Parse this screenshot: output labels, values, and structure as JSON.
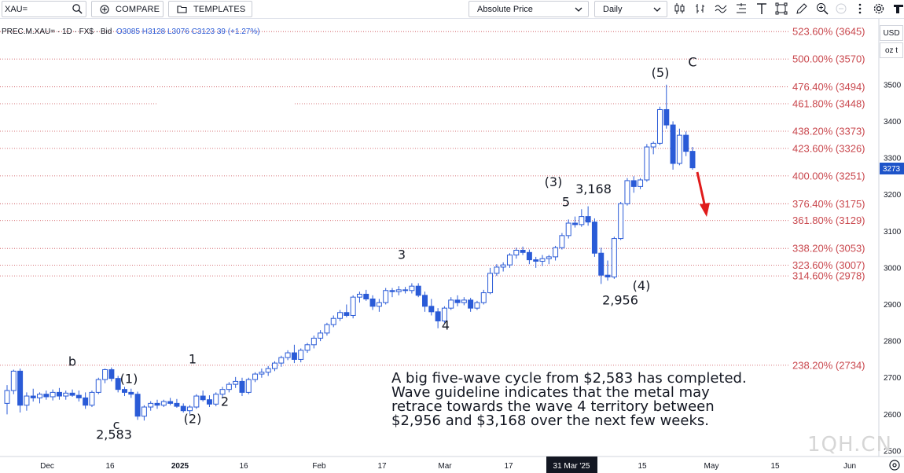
{
  "toolbar": {
    "symbol": "XAU=",
    "compare_label": "COMPARE",
    "templates_label": "TEMPLATES",
    "price_mode": "Absolute Price",
    "interval": "Daily",
    "icons": [
      "candlestick-icon",
      "bars-icon",
      "indicators-icon",
      "drawing-tools-icon",
      "text-tool-icon",
      "shapes-icon",
      "pencil-icon",
      "zoom-in-icon",
      "zoom-out-icon",
      "more-icon",
      "settings-icon",
      "logo-icon"
    ]
  },
  "legend": {
    "instrument": "PREC.M.XAU=",
    "interval": "1D",
    "currency": "FX$",
    "side": "Bid",
    "open": "O3085",
    "high": "H3128",
    "low": "L3076",
    "close": "C3123",
    "change": "39 (+1.27%)"
  },
  "axis": {
    "currency_button": "USD",
    "unit_button": "oz t",
    "last_price": "3273",
    "active_date": "31 Mar '25"
  },
  "annotation_note": [
    "A big five-wave cycle from $2,583 has completed.",
    "Wave guideline indicates that the metal may",
    "retrace towards the wave 4 territory between",
    "$2,956 and $3,168 over the next few weeks."
  ],
  "watermark": "1QH.CN",
  "colors": {
    "candle_blue": "#2a5bd7",
    "fib_line": "#c9474d",
    "arrow": "#e01b1b",
    "price_badge": "#1e54c9",
    "date_badge": "#131722"
  },
  "chart_data": {
    "type": "candlestick",
    "instrument": "XAU=",
    "y_axis": {
      "ticks": [
        2500,
        2600,
        2700,
        2800,
        2900,
        3000,
        3100,
        3200,
        3300,
        3400,
        3500
      ],
      "range": [
        2480,
        3690
      ]
    },
    "x_axis": {
      "ticks": [
        "Dec",
        "16",
        "2025",
        "16",
        "Feb",
        "17",
        "Mar",
        "17",
        "31 Mar '25",
        "15",
        "May",
        "15",
        "Jun"
      ]
    },
    "fib_levels": [
      {
        "label": "238.20% (2734)",
        "value": 2734
      },
      {
        "label": "314.60% (2978)",
        "value": 2978
      },
      {
        "label": "323.60% (3007)",
        "value": 3007
      },
      {
        "label": "338.20% (3053)",
        "value": 3053
      },
      {
        "label": "361.80% (3129)",
        "value": 3129
      },
      {
        "label": "376.40% (3175)",
        "value": 3175
      },
      {
        "label": "400.00% (3251)",
        "value": 3251
      },
      {
        "label": "423.60% (3326)",
        "value": 3326
      },
      {
        "label": "438.20% (3373)",
        "value": 3373
      },
      {
        "label": "461.80% (3448)",
        "value": 3448
      },
      {
        "label": "476.40% (3494)",
        "value": 3494
      },
      {
        "label": "500.00% (3570)",
        "value": 3570
      },
      {
        "label": "523.60% (3645)",
        "value": 3645
      }
    ],
    "wave_labels": [
      {
        "text": "b",
        "price": 2746
      },
      {
        "text": "c",
        "price": 2573
      },
      {
        "text": "2,583",
        "price": 2546
      },
      {
        "text": "(1)",
        "price": 2698
      },
      {
        "text": "(2)",
        "price": 2589
      },
      {
        "text": "1",
        "price": 2752
      },
      {
        "text": "2",
        "price": 2636
      },
      {
        "text": "3",
        "price": 3037
      },
      {
        "text": "4",
        "price": 2844
      },
      {
        "text": "5",
        "price": 3181
      },
      {
        "text": "3,168",
        "price": 3216
      },
      {
        "text": "(3)",
        "price": 3236
      },
      {
        "text": "(4)",
        "price": 2953
      },
      {
        "text": "2,956",
        "price": 2913
      },
      {
        "text": "(5)",
        "price": 3534
      },
      {
        "text": "C",
        "price": 3563
      }
    ],
    "candles": [
      {
        "o": 2630,
        "h": 2680,
        "l": 2600,
        "c": 2665
      },
      {
        "o": 2665,
        "h": 2722,
        "l": 2655,
        "c": 2718
      },
      {
        "o": 2718,
        "h": 2725,
        "l": 2605,
        "c": 2625
      },
      {
        "o": 2625,
        "h": 2660,
        "l": 2610,
        "c": 2650
      },
      {
        "o": 2650,
        "h": 2670,
        "l": 2635,
        "c": 2645
      },
      {
        "o": 2645,
        "h": 2660,
        "l": 2630,
        "c": 2655
      },
      {
        "o": 2655,
        "h": 2665,
        "l": 2640,
        "c": 2648
      },
      {
        "o": 2648,
        "h": 2668,
        "l": 2638,
        "c": 2660
      },
      {
        "o": 2660,
        "h": 2672,
        "l": 2640,
        "c": 2650
      },
      {
        "o": 2650,
        "h": 2665,
        "l": 2640,
        "c": 2658
      },
      {
        "o": 2658,
        "h": 2668,
        "l": 2648,
        "c": 2652
      },
      {
        "o": 2652,
        "h": 2665,
        "l": 2635,
        "c": 2645
      },
      {
        "o": 2645,
        "h": 2660,
        "l": 2615,
        "c": 2625
      },
      {
        "o": 2625,
        "h": 2665,
        "l": 2620,
        "c": 2660
      },
      {
        "o": 2660,
        "h": 2700,
        "l": 2655,
        "c": 2695
      },
      {
        "o": 2695,
        "h": 2725,
        "l": 2685,
        "c": 2722
      },
      {
        "o": 2722,
        "h": 2728,
        "l": 2690,
        "c": 2698
      },
      {
        "o": 2698,
        "h": 2705,
        "l": 2660,
        "c": 2668
      },
      {
        "o": 2668,
        "h": 2675,
        "l": 2650,
        "c": 2660
      },
      {
        "o": 2660,
        "h": 2670,
        "l": 2645,
        "c": 2655
      },
      {
        "o": 2655,
        "h": 2662,
        "l": 2585,
        "c": 2595
      },
      {
        "o": 2595,
        "h": 2625,
        "l": 2583,
        "c": 2620
      },
      {
        "o": 2620,
        "h": 2636,
        "l": 2610,
        "c": 2630
      },
      {
        "o": 2630,
        "h": 2640,
        "l": 2615,
        "c": 2625
      },
      {
        "o": 2625,
        "h": 2640,
        "l": 2620,
        "c": 2635
      },
      {
        "o": 2635,
        "h": 2645,
        "l": 2625,
        "c": 2630
      },
      {
        "o": 2630,
        "h": 2642,
        "l": 2618,
        "c": 2622
      },
      {
        "o": 2622,
        "h": 2630,
        "l": 2605,
        "c": 2610
      },
      {
        "o": 2610,
        "h": 2625,
        "l": 2600,
        "c": 2620
      },
      {
        "o": 2620,
        "h": 2655,
        "l": 2615,
        "c": 2650
      },
      {
        "o": 2650,
        "h": 2665,
        "l": 2635,
        "c": 2640
      },
      {
        "o": 2640,
        "h": 2652,
        "l": 2620,
        "c": 2628
      },
      {
        "o": 2628,
        "h": 2660,
        "l": 2622,
        "c": 2655
      },
      {
        "o": 2655,
        "h": 2675,
        "l": 2645,
        "c": 2668
      },
      {
        "o": 2668,
        "h": 2688,
        "l": 2660,
        "c": 2682
      },
      {
        "o": 2682,
        "h": 2702,
        "l": 2672,
        "c": 2690
      },
      {
        "o": 2690,
        "h": 2700,
        "l": 2650,
        "c": 2660
      },
      {
        "o": 2660,
        "h": 2700,
        "l": 2655,
        "c": 2695
      },
      {
        "o": 2695,
        "h": 2715,
        "l": 2688,
        "c": 2710
      },
      {
        "o": 2710,
        "h": 2725,
        "l": 2700,
        "c": 2715
      },
      {
        "o": 2715,
        "h": 2732,
        "l": 2705,
        "c": 2725
      },
      {
        "o": 2725,
        "h": 2745,
        "l": 2718,
        "c": 2740
      },
      {
        "o": 2740,
        "h": 2760,
        "l": 2730,
        "c": 2755
      },
      {
        "o": 2755,
        "h": 2775,
        "l": 2748,
        "c": 2768
      },
      {
        "o": 2768,
        "h": 2790,
        "l": 2740,
        "c": 2750
      },
      {
        "o": 2750,
        "h": 2780,
        "l": 2742,
        "c": 2775
      },
      {
        "o": 2775,
        "h": 2795,
        "l": 2768,
        "c": 2790
      },
      {
        "o": 2790,
        "h": 2815,
        "l": 2780,
        "c": 2808
      },
      {
        "o": 2808,
        "h": 2830,
        "l": 2800,
        "c": 2822
      },
      {
        "o": 2822,
        "h": 2850,
        "l": 2815,
        "c": 2845
      },
      {
        "o": 2845,
        "h": 2870,
        "l": 2838,
        "c": 2862
      },
      {
        "o": 2862,
        "h": 2885,
        "l": 2855,
        "c": 2878
      },
      {
        "o": 2878,
        "h": 2900,
        "l": 2865,
        "c": 2870
      },
      {
        "o": 2870,
        "h": 2925,
        "l": 2862,
        "c": 2920
      },
      {
        "o": 2920,
        "h": 2935,
        "l": 2905,
        "c": 2928
      },
      {
        "o": 2928,
        "h": 2940,
        "l": 2910,
        "c": 2915
      },
      {
        "o": 2915,
        "h": 2925,
        "l": 2885,
        "c": 2895
      },
      {
        "o": 2895,
        "h": 2915,
        "l": 2880,
        "c": 2905
      },
      {
        "o": 2905,
        "h": 2945,
        "l": 2900,
        "c": 2938
      },
      {
        "o": 2938,
        "h": 2945,
        "l": 2920,
        "c": 2935
      },
      {
        "o": 2935,
        "h": 2950,
        "l": 2925,
        "c": 2940
      },
      {
        "o": 2940,
        "h": 2948,
        "l": 2930,
        "c": 2938
      },
      {
        "o": 2938,
        "h": 2958,
        "l": 2930,
        "c": 2950
      },
      {
        "o": 2950,
        "h": 2958,
        "l": 2920,
        "c": 2925
      },
      {
        "o": 2925,
        "h": 2935,
        "l": 2880,
        "c": 2895
      },
      {
        "o": 2895,
        "h": 2915,
        "l": 2870,
        "c": 2880
      },
      {
        "o": 2880,
        "h": 2890,
        "l": 2835,
        "c": 2855
      },
      {
        "o": 2855,
        "h": 2895,
        "l": 2850,
        "c": 2890
      },
      {
        "o": 2890,
        "h": 2920,
        "l": 2885,
        "c": 2912
      },
      {
        "o": 2912,
        "h": 2925,
        "l": 2895,
        "c": 2905
      },
      {
        "o": 2905,
        "h": 2920,
        "l": 2898,
        "c": 2912
      },
      {
        "o": 2912,
        "h": 2918,
        "l": 2880,
        "c": 2890
      },
      {
        "o": 2890,
        "h": 2910,
        "l": 2885,
        "c": 2905
      },
      {
        "o": 2905,
        "h": 2940,
        "l": 2900,
        "c": 2932
      },
      {
        "o": 2932,
        "h": 3000,
        "l": 2928,
        "c": 2985
      },
      {
        "o": 2985,
        "h": 3010,
        "l": 2978,
        "c": 3002
      },
      {
        "o": 3002,
        "h": 3015,
        "l": 2990,
        "c": 3008
      },
      {
        "o": 3008,
        "h": 3040,
        "l": 3000,
        "c": 3035
      },
      {
        "o": 3035,
        "h": 3055,
        "l": 3025,
        "c": 3048
      },
      {
        "o": 3048,
        "h": 3058,
        "l": 3035,
        "c": 3042
      },
      {
        "o": 3042,
        "h": 3050,
        "l": 3010,
        "c": 3022
      },
      {
        "o": 3022,
        "h": 3030,
        "l": 3000,
        "c": 3018
      },
      {
        "o": 3018,
        "h": 3035,
        "l": 3005,
        "c": 3025
      },
      {
        "o": 3025,
        "h": 3035,
        "l": 3010,
        "c": 3030
      },
      {
        "o": 3030,
        "h": 3060,
        "l": 3020,
        "c": 3055
      },
      {
        "o": 3055,
        "h": 3095,
        "l": 3050,
        "c": 3088
      },
      {
        "o": 3088,
        "h": 3132,
        "l": 3080,
        "c": 3122
      },
      {
        "o": 3122,
        "h": 3140,
        "l": 3110,
        "c": 3118
      },
      {
        "o": 3118,
        "h": 3160,
        "l": 3112,
        "c": 3140
      },
      {
        "o": 3140,
        "h": 3168,
        "l": 3115,
        "c": 3125
      },
      {
        "o": 3125,
        "h": 3135,
        "l": 3030,
        "c": 3040
      },
      {
        "o": 3040,
        "h": 3055,
        "l": 2956,
        "c": 2980
      },
      {
        "o": 2980,
        "h": 3020,
        "l": 2965,
        "c": 2975
      },
      {
        "o": 2975,
        "h": 3085,
        "l": 2970,
        "c": 3080
      },
      {
        "o": 3080,
        "h": 3180,
        "l": 3076,
        "c": 3175
      },
      {
        "o": 3175,
        "h": 3245,
        "l": 3170,
        "c": 3238
      },
      {
        "o": 3238,
        "h": 3250,
        "l": 3205,
        "c": 3222
      },
      {
        "o": 3222,
        "h": 3245,
        "l": 3215,
        "c": 3240
      },
      {
        "o": 3240,
        "h": 3338,
        "l": 3235,
        "c": 3330
      },
      {
        "o": 3330,
        "h": 3345,
        "l": 3310,
        "c": 3340
      },
      {
        "o": 3340,
        "h": 3440,
        "l": 3335,
        "c": 3432
      },
      {
        "o": 3432,
        "h": 3500,
        "l": 3380,
        "c": 3390
      },
      {
        "o": 3390,
        "h": 3400,
        "l": 3268,
        "c": 3285
      },
      {
        "o": 3285,
        "h": 3380,
        "l": 3280,
        "c": 3362
      },
      {
        "o": 3362,
        "h": 3372,
        "l": 3305,
        "c": 3318
      },
      {
        "o": 3318,
        "h": 3330,
        "l": 3268,
        "c": 3273
      }
    ]
  }
}
